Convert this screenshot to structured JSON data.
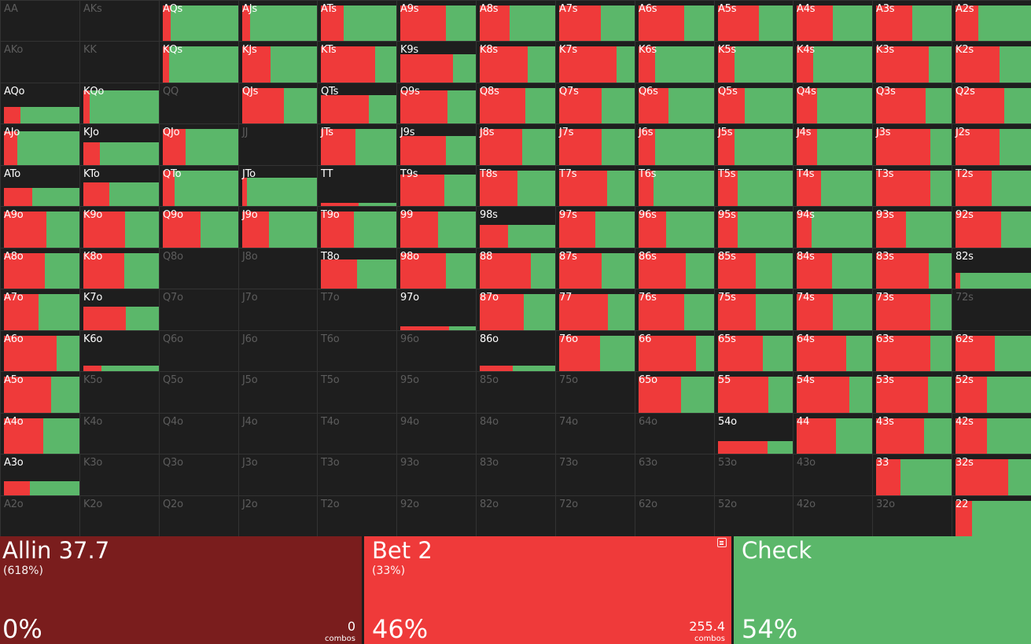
{
  "matrix": {
    "rows": [
      [
        [
          "AA",
          "n",
          0
        ],
        [
          "AKs",
          "n",
          0
        ],
        [
          "AQs",
          "x",
          0.1
        ],
        [
          "AJs",
          "x",
          0.1
        ],
        [
          "ATs",
          "x",
          0.3
        ],
        [
          "A9s",
          "x",
          0.6
        ],
        [
          "A8s",
          "x",
          0.4
        ],
        [
          "A7s",
          "x",
          0.55
        ],
        [
          "A6s",
          "x",
          0.6
        ],
        [
          "A5s",
          "x",
          0.55
        ],
        [
          "A4s",
          "x",
          0.48
        ],
        [
          "A3s",
          "x",
          0.48
        ],
        [
          "A2s",
          "x",
          0.3
        ]
      ],
      [
        [
          "AKo",
          "n",
          0
        ],
        [
          "KK",
          "n",
          0
        ],
        [
          "KQs",
          "x",
          0.08
        ],
        [
          "KJs",
          "x",
          0.38
        ],
        [
          "KTs",
          "x",
          0.72
        ],
        [
          "K9s",
          "h",
          0.7,
          0.7
        ],
        [
          "K8s",
          "x",
          0.64
        ],
        [
          "K7s",
          "x",
          0.76
        ],
        [
          "K6s",
          "x",
          0.22
        ],
        [
          "K5s",
          "x",
          0.22
        ],
        [
          "K4s",
          "x",
          0.22
        ],
        [
          "K3s",
          "x",
          0.7
        ],
        [
          "K2s",
          "x",
          0.58
        ]
      ],
      [
        [
          "AQo",
          "h",
          0.22,
          0.42
        ],
        [
          "KQo",
          "h",
          0.08,
          0.82
        ],
        [
          "QQ",
          "n",
          0
        ],
        [
          "QJs",
          "x",
          0.56
        ],
        [
          "QTs",
          "h",
          0.64,
          0.7
        ],
        [
          "Q9s",
          "h",
          0.62,
          0.82
        ],
        [
          "Q8s",
          "x",
          0.6
        ],
        [
          "Q7s",
          "x",
          0.56
        ],
        [
          "Q6s",
          "x",
          0.4
        ],
        [
          "Q5s",
          "x",
          0.36
        ],
        [
          "Q4s",
          "x",
          0.27
        ],
        [
          "Q3s",
          "x",
          0.66
        ],
        [
          "Q2s",
          "x",
          0.65
        ]
      ],
      [
        [
          "AJo",
          "h",
          0.18,
          0.82
        ],
        [
          "KJo",
          "h",
          0.22,
          0.56
        ],
        [
          "QJo",
          "x",
          0.3
        ],
        [
          "JJ",
          "n",
          0
        ],
        [
          "JTs",
          "x",
          0.46
        ],
        [
          "J9s",
          "h",
          0.6,
          0.72
        ],
        [
          "J8s",
          "x",
          0.56
        ],
        [
          "J7s",
          "x",
          0.56
        ],
        [
          "J6s",
          "x",
          0.22
        ],
        [
          "J5s",
          "x",
          0.22
        ],
        [
          "J4s",
          "x",
          0.27
        ],
        [
          "J3s",
          "x",
          0.72
        ],
        [
          "J2s",
          "x",
          0.58
        ]
      ],
      [
        [
          "ATo",
          "h",
          0.38,
          0.46
        ],
        [
          "KTo",
          "h",
          0.34,
          0.58
        ],
        [
          "QTo",
          "x",
          0.16
        ],
        [
          "JTo",
          "h",
          0.06,
          0.7
        ],
        [
          "TT",
          "h",
          0.5,
          0.08
        ],
        [
          "T9s",
          "h",
          0.58,
          0.78
        ],
        [
          "T8s",
          "x",
          0.5
        ],
        [
          "T7s",
          "x",
          0.64
        ],
        [
          "T6s",
          "x",
          0.2
        ],
        [
          "T5s",
          "x",
          0.26
        ],
        [
          "T4s",
          "x",
          0.32
        ],
        [
          "T3s",
          "x",
          0.72
        ],
        [
          "T2s",
          "x",
          0.48
        ]
      ],
      [
        [
          "A9o",
          "x",
          0.56
        ],
        [
          "K9o",
          "x",
          0.55
        ],
        [
          "Q9o",
          "x",
          0.5
        ],
        [
          "J9o",
          "x",
          0.36
        ],
        [
          "T9o",
          "x",
          0.44
        ],
        [
          "99",
          "x",
          0.5
        ],
        [
          "98s",
          "h",
          0.38,
          0.55
        ],
        [
          "97s",
          "x",
          0.48
        ],
        [
          "96s",
          "x",
          0.36
        ],
        [
          "95s",
          "x",
          0.26
        ],
        [
          "94s",
          "x",
          0.2
        ],
        [
          "93s",
          "x",
          0.4
        ],
        [
          "92s",
          "x",
          0.6
        ]
      ],
      [
        [
          "A8o",
          "x",
          0.54
        ],
        [
          "K8o",
          "x",
          0.54
        ],
        [
          "Q8o",
          "n",
          0
        ],
        [
          "J8o",
          "n",
          0
        ],
        [
          "T8o",
          "h",
          0.48,
          0.72
        ],
        [
          "98o",
          "x",
          0.6
        ],
        [
          "88",
          "x",
          0.68
        ],
        [
          "87s",
          "x",
          0.56
        ],
        [
          "86s",
          "x",
          0.62
        ],
        [
          "85s",
          "x",
          0.5
        ],
        [
          "84s",
          "x",
          0.47
        ],
        [
          "83s",
          "x",
          0.7
        ],
        [
          "82s",
          "h",
          0.06,
          0.4
        ]
      ],
      [
        [
          "A7o",
          "x",
          0.46
        ],
        [
          "K7o",
          "h",
          0.56,
          0.58
        ],
        [
          "Q7o",
          "n",
          0
        ],
        [
          "J7o",
          "n",
          0
        ],
        [
          "T7o",
          "n",
          0
        ],
        [
          "97o",
          "h",
          0.65,
          0.1
        ],
        [
          "87o",
          "x",
          0.58
        ],
        [
          "77",
          "x",
          0.65
        ],
        [
          "76s",
          "x",
          0.6
        ],
        [
          "75s",
          "x",
          0.5
        ],
        [
          "74s",
          "x",
          0.48
        ],
        [
          "73s",
          "x",
          0.72
        ],
        [
          "72s",
          "n",
          0
        ]
      ],
      [
        [
          "A6o",
          "x",
          0.7
        ],
        [
          "K6o",
          "h",
          0.24,
          0.14
        ],
        [
          "Q6o",
          "n",
          0
        ],
        [
          "J6o",
          "n",
          0
        ],
        [
          "T6o",
          "n",
          0
        ],
        [
          "96o",
          "n",
          0
        ],
        [
          "86o",
          "h",
          0.44,
          0.14
        ],
        [
          "76o",
          "x",
          0.54
        ],
        [
          "66",
          "x",
          0.76
        ],
        [
          "65s",
          "x",
          0.6
        ],
        [
          "64s",
          "x",
          0.66
        ],
        [
          "63s",
          "x",
          0.72
        ],
        [
          "62s",
          "x",
          0.52
        ]
      ],
      [
        [
          "A5o",
          "x",
          0.62
        ],
        [
          "K5o",
          "n",
          0
        ],
        [
          "Q5o",
          "n",
          0
        ],
        [
          "J5o",
          "n",
          0
        ],
        [
          "T5o",
          "n",
          0
        ],
        [
          "95o",
          "n",
          0
        ],
        [
          "85o",
          "n",
          0
        ],
        [
          "75o",
          "n",
          0
        ],
        [
          "65o",
          "x",
          0.56
        ],
        [
          "55",
          "x",
          0.67
        ],
        [
          "54s",
          "x",
          0.7
        ],
        [
          "53s",
          "x",
          0.69
        ],
        [
          "52s",
          "x",
          0.42
        ]
      ],
      [
        [
          "A4o",
          "x",
          0.52
        ],
        [
          "K4o",
          "n",
          0
        ],
        [
          "Q4o",
          "n",
          0
        ],
        [
          "J4o",
          "n",
          0
        ],
        [
          "T4o",
          "n",
          0
        ],
        [
          "94o",
          "n",
          0
        ],
        [
          "84o",
          "n",
          0
        ],
        [
          "74o",
          "n",
          0
        ],
        [
          "64o",
          "n",
          0
        ],
        [
          "54o",
          "h",
          0.66,
          0.32
        ],
        [
          "44",
          "x",
          0.52
        ],
        [
          "43s",
          "x",
          0.64
        ],
        [
          "42s",
          "x",
          0.42
        ]
      ],
      [
        [
          "A3o",
          "h",
          0.34,
          0.35
        ],
        [
          "K3o",
          "n",
          0
        ],
        [
          "Q3o",
          "n",
          0
        ],
        [
          "J3o",
          "n",
          0
        ],
        [
          "T3o",
          "n",
          0
        ],
        [
          "93o",
          "n",
          0
        ],
        [
          "83o",
          "n",
          0
        ],
        [
          "73o",
          "n",
          0
        ],
        [
          "63o",
          "n",
          0
        ],
        [
          "53o",
          "n",
          0
        ],
        [
          "43o",
          "n",
          0
        ],
        [
          "33",
          "x",
          0.32
        ],
        [
          "32s",
          "x",
          0.7
        ]
      ],
      [
        [
          "A2o",
          "n",
          0
        ],
        [
          "K2o",
          "n",
          0
        ],
        [
          "Q2o",
          "n",
          0
        ],
        [
          "J2o",
          "n",
          0
        ],
        [
          "T2o",
          "n",
          0
        ],
        [
          "92o",
          "n",
          0
        ],
        [
          "82o",
          "n",
          0
        ],
        [
          "72o",
          "n",
          0
        ],
        [
          "62o",
          "n",
          0
        ],
        [
          "52o",
          "n",
          0
        ],
        [
          "42o",
          "n",
          0
        ],
        [
          "32o",
          "n",
          0
        ],
        [
          "22",
          "x",
          0.22
        ]
      ]
    ]
  },
  "actions": [
    {
      "key": "allin",
      "name": "Allin 37.7",
      "size": "(618%)",
      "pct": "0%",
      "combos": "0",
      "combos_label": "combos",
      "color": "#7a1d1d"
    },
    {
      "key": "bet",
      "name": "Bet 2",
      "size": "(33%)",
      "pct": "46%",
      "combos": "255.4",
      "combos_label": "combos",
      "color": "#ef3a3a",
      "icon": "notes-icon"
    },
    {
      "key": "check",
      "name": "Check",
      "size": "",
      "pct": "54%",
      "combos": "",
      "combos_label": "",
      "color": "#5bb76a"
    }
  ],
  "colors": {
    "bet": "#ef3a3a",
    "check": "#5bb76a",
    "empty": "#1e1e1e"
  }
}
